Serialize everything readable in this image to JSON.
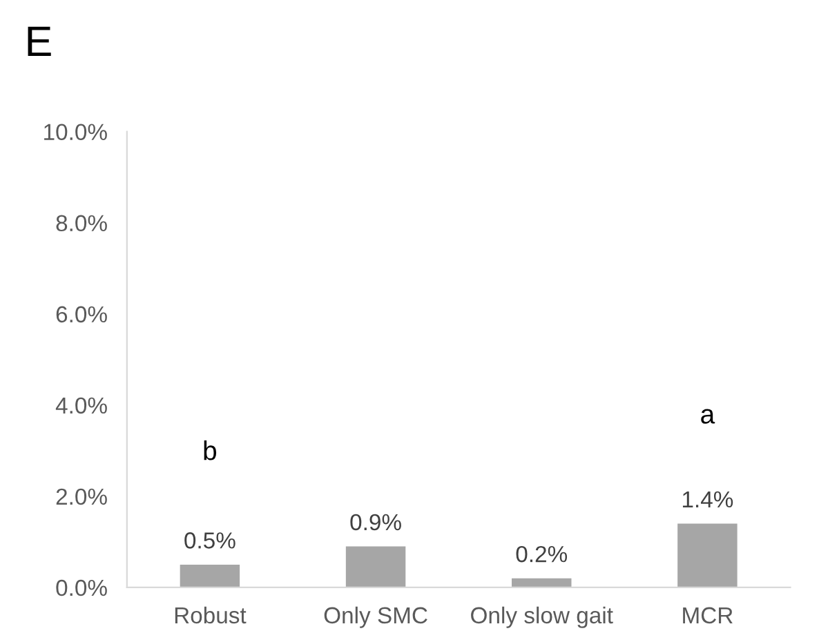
{
  "chart_data": {
    "type": "bar",
    "title": "E",
    "categories": [
      "Robust",
      "Only SMC",
      "Only slow gait",
      "MCR"
    ],
    "values": [
      0.5,
      0.9,
      0.2,
      1.4
    ],
    "color": "#a6a6a6",
    "value_labels": [
      "0.5%",
      "0.9%",
      "0.2%",
      "1.4%"
    ],
    "ylim": [
      0,
      10
    ],
    "yticks": [
      {
        "value": 0,
        "label": "0.0%"
      },
      {
        "value": 2,
        "label": "2.0%"
      },
      {
        "value": 4,
        "label": "4.0%"
      },
      {
        "value": 6,
        "label": "6.0%"
      },
      {
        "value": 8,
        "label": "8.0%"
      },
      {
        "value": 10,
        "label": "10.0%"
      }
    ],
    "annotations": [
      "b",
      "a"
    ],
    "grid": false,
    "legend": false
  }
}
